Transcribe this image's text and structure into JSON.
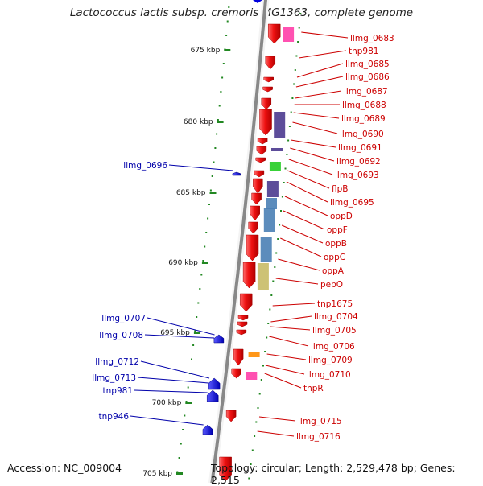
{
  "title": "Lactococcus lactis subsp. cremoris MG1363, complete genome",
  "accession": "Accession: NC_009004",
  "topology": "Topology: circular; Length: 2,529,478 bp; Genes: 2,515",
  "colors": {
    "forward_strand_gene": "#ee1111",
    "reverse_strand_gene": "#0000dd",
    "forward_label": "#cc0000",
    "reverse_label": "#0000aa",
    "tick": "#228822",
    "backbone": "#888888"
  },
  "scale_ticks": [
    "675 kbp",
    "680 kbp",
    "685 kbp",
    "690 kbp",
    "695 kbp",
    "700 kbp",
    "705 kbp"
  ],
  "right_labels": [
    "llmg_0683",
    "tnp981",
    "llmg_0685",
    "llmg_0686",
    "llmg_0687",
    "llmg_0688",
    "llmg_0689",
    "llmg_0690",
    "llmg_0691",
    "llmg_0692",
    "llmg_0693",
    "flpB",
    "llmg_0695",
    "oppD",
    "oppF",
    "oppB",
    "oppC",
    "oppA",
    "pepO",
    "tnp1675",
    "llmg_0704",
    "llmg_0705",
    "llmg_0706",
    "llmg_0709",
    "llmg_0710",
    "tnpR",
    "llmg_0715",
    "llmg_0716"
  ],
  "left_labels": [
    "llmg_0696",
    "llmg_0707",
    "llmg_0708",
    "llmg_0712",
    "llmg_0713",
    "tnp981",
    "tnp946"
  ]
}
